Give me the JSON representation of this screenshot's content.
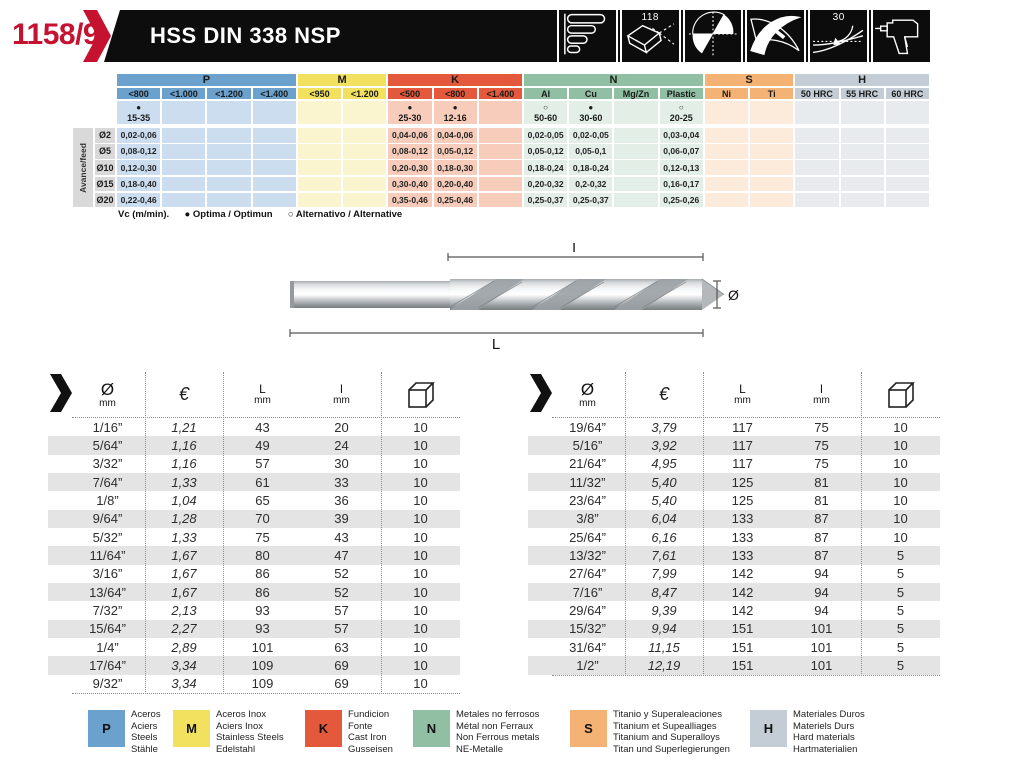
{
  "page": {
    "code": "1158/9",
    "title": "HSS DIN 338 NSP"
  },
  "header_icons": [
    {
      "name": "shank-size-range-icon",
      "label": ""
    },
    {
      "name": "point-angle-icon",
      "label": "118"
    },
    {
      "name": "cross-section-icon",
      "label": ""
    },
    {
      "name": "flute-profile-icon",
      "label": ""
    },
    {
      "name": "helix-angle-icon",
      "label": "30"
    },
    {
      "name": "power-drill-icon",
      "label": ""
    }
  ],
  "materials": {
    "groups": [
      {
        "id": "P",
        "span": 4,
        "color": "#6BA1CD",
        "light": "#CBDDEF"
      },
      {
        "id": "M",
        "span": 2,
        "color": "#F1E15F",
        "light": "#FAF5CF"
      },
      {
        "id": "K",
        "span": 3,
        "color": "#E4593B",
        "light": "#F7CCBA"
      },
      {
        "id": "N",
        "span": 4,
        "color": "#90BFA4",
        "light": "#E2EEE6"
      },
      {
        "id": "S",
        "span": 2,
        "color": "#F4B374",
        "light": "#FCEBDB"
      },
      {
        "id": "H",
        "span": 3,
        "color": "#C4CDD5",
        "light": "#E7EBEE"
      }
    ],
    "columns": [
      "<800",
      "<1.000",
      "<1.200",
      "<1.400",
      "<950",
      "<1.200",
      "<500",
      "<800",
      "<1.400",
      "Al",
      "Cu",
      "Mg/Zn",
      "Plastic",
      "Ni",
      "Ti",
      "50 HRC",
      "55 HRC",
      "60 HRC"
    ],
    "vc_row": [
      {
        "symbol": "●",
        "range": "15-35"
      },
      null,
      null,
      null,
      null,
      null,
      {
        "symbol": "●",
        "range": "25-30"
      },
      {
        "symbol": "●",
        "range": "12-16"
      },
      null,
      {
        "symbol": "○",
        "range": "50-60"
      },
      {
        "symbol": "●",
        "range": "30-60"
      },
      null,
      {
        "symbol": "○",
        "range": "20-25"
      },
      null,
      null,
      null,
      null,
      null
    ],
    "feed_label": "Avance/feed",
    "rows": [
      {
        "dia": "Ø2",
        "values": [
          "0,02-0,06",
          "",
          "",
          "",
          "",
          "",
          "0,04-0,06",
          "0,04-0,06",
          "",
          "0,02-0,05",
          "0,02-0,05",
          "",
          "0,03-0,04",
          "",
          "",
          "",
          "",
          ""
        ]
      },
      {
        "dia": "Ø5",
        "values": [
          "0,08-0,12",
          "",
          "",
          "",
          "",
          "",
          "0,08-0,12",
          "0,05-0,12",
          "",
          "0,05-0,12",
          "0,05-0,1",
          "",
          "0,06-0,07",
          "",
          "",
          "",
          "",
          ""
        ]
      },
      {
        "dia": "Ø10",
        "values": [
          "0,12-0,30",
          "",
          "",
          "",
          "",
          "",
          "0,20-0,30",
          "0,18-0,30",
          "",
          "0,18-0,24",
          "0,18-0,24",
          "",
          "0,12-0,13",
          "",
          "",
          "",
          "",
          ""
        ]
      },
      {
        "dia": "Ø15",
        "values": [
          "0,18-0,40",
          "",
          "",
          "",
          "",
          "",
          "0,30-0,40",
          "0,20-0,40",
          "",
          "0,20-0,32",
          "0,2-0,32",
          "",
          "0,16-0,17",
          "",
          "",
          "",
          "",
          ""
        ]
      },
      {
        "dia": "Ø20",
        "values": [
          "0,22-0,46",
          "",
          "",
          "",
          "",
          "",
          "0,35-0,46",
          "0,25-0,46",
          "",
          "0,25-0,37",
          "0,25-0,37",
          "",
          "0,25-0,26",
          "",
          "",
          "",
          "",
          ""
        ]
      }
    ],
    "caption": {
      "unit": "Vc (m/min).",
      "optimal_symbol": "●",
      "optimal": "Optima / Optimun",
      "alt_symbol": "○",
      "alt": "Alternativo / Alternative"
    }
  },
  "diagram": {
    "flute_length_label": "l",
    "total_length_label": "L",
    "diameter_label": "Ø"
  },
  "catalog": {
    "header": {
      "dia": "Ø",
      "dia_unit": "mm",
      "price": "€",
      "L": "L",
      "L_unit": "mm",
      "l": "l",
      "l_unit": "mm"
    },
    "tables": [
      {
        "rows": [
          [
            "1/16”",
            "1,21",
            "43",
            "20",
            "10"
          ],
          [
            "5/64”",
            "1,16",
            "49",
            "24",
            "10"
          ],
          [
            "3/32”",
            "1,16",
            "57",
            "30",
            "10"
          ],
          [
            "7/64”",
            "1,33",
            "61",
            "33",
            "10"
          ],
          [
            "1/8”",
            "1,04",
            "65",
            "36",
            "10"
          ],
          [
            "9/64”",
            "1,28",
            "70",
            "39",
            "10"
          ],
          [
            "5/32”",
            "1,33",
            "75",
            "43",
            "10"
          ],
          [
            "11/64”",
            "1,67",
            "80",
            "47",
            "10"
          ],
          [
            "3/16”",
            "1,67",
            "86",
            "52",
            "10"
          ],
          [
            "13/64”",
            "1,67",
            "86",
            "52",
            "10"
          ],
          [
            "7/32”",
            "2,13",
            "93",
            "57",
            "10"
          ],
          [
            "15/64”",
            "2,27",
            "93",
            "57",
            "10"
          ],
          [
            "1/4”",
            "2,89",
            "101",
            "63",
            "10"
          ],
          [
            "17/64”",
            "3,34",
            "109",
            "69",
            "10"
          ],
          [
            "9/32”",
            "3,34",
            "109",
            "69",
            "10"
          ]
        ]
      },
      {
        "rows": [
          [
            "19/64”",
            "3,79",
            "117",
            "75",
            "10"
          ],
          [
            "5/16”",
            "3,92",
            "117",
            "75",
            "10"
          ],
          [
            "21/64”",
            "4,95",
            "117",
            "75",
            "10"
          ],
          [
            "11/32”",
            "5,40",
            "125",
            "81",
            "10"
          ],
          [
            "23/64”",
            "5,40",
            "125",
            "81",
            "10"
          ],
          [
            "3/8”",
            "6,04",
            "133",
            "87",
            "10"
          ],
          [
            "25/64”",
            "6,16",
            "133",
            "87",
            "10"
          ],
          [
            "13/32”",
            "7,61",
            "133",
            "87",
            "5"
          ],
          [
            "27/64”",
            "7,99",
            "142",
            "94",
            "5"
          ],
          [
            "7/16”",
            "8,47",
            "142",
            "94",
            "5"
          ],
          [
            "29/64”",
            "9,39",
            "142",
            "94",
            "5"
          ],
          [
            "15/32”",
            "9,94",
            "151",
            "101",
            "5"
          ],
          [
            "31/64”",
            "11,15",
            "151",
            "101",
            "5"
          ],
          [
            "1/2”",
            "12,19",
            "151",
            "101",
            "5"
          ]
        ]
      }
    ]
  },
  "legend": [
    {
      "id": "P",
      "color": "#6BA1CD",
      "lines": [
        "Aceros",
        "Aciers",
        "Steels",
        "Stähle"
      ]
    },
    {
      "id": "M",
      "color": "#F1E15F",
      "lines": [
        "Aceros Inox",
        "Aciers Inox",
        "Stainless Steels",
        "Edelstahl"
      ]
    },
    {
      "id": "K",
      "color": "#E4593B",
      "lines": [
        "Fundicion",
        "Fonte",
        "Cast Iron",
        "Gusseisen"
      ]
    },
    {
      "id": "N",
      "color": "#90BFA4",
      "lines": [
        "Metales no ferrosos",
        "Métal non Ferraux",
        "Non Ferrous metals",
        "NE-Metalle"
      ]
    },
    {
      "id": "S",
      "color": "#F4B374",
      "lines": [
        "Titanio y Superaleaciones",
        "Titanium et Supealliages",
        "Titanium and Superalloys",
        "Titan und Superlegierungen"
      ]
    },
    {
      "id": "H",
      "color": "#C4CDD5",
      "lines": [
        "Materiales Duros",
        "Materiels Durs",
        "Hard materials",
        "Hartmaterialien"
      ]
    }
  ]
}
